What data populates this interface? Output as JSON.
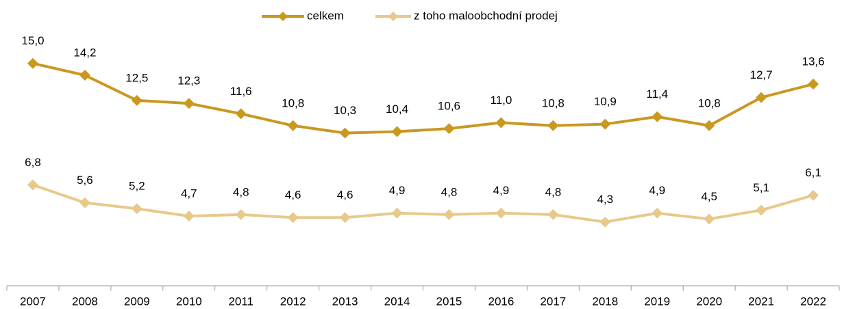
{
  "chart_data": {
    "type": "line",
    "categories": [
      "2007",
      "2008",
      "2009",
      "2010",
      "2011",
      "2012",
      "2013",
      "2014",
      "2015",
      "2016",
      "2017",
      "2018",
      "2019",
      "2020",
      "2021",
      "2022"
    ],
    "series": [
      {
        "name": "celkem",
        "color": "#c9981f",
        "values": [
          15.0,
          14.2,
          12.5,
          12.3,
          11.6,
          10.8,
          10.3,
          10.4,
          10.6,
          11.0,
          10.8,
          10.9,
          11.4,
          10.8,
          12.7,
          13.6
        ],
        "value_labels": [
          "15,0",
          "14,2",
          "12,5",
          "12,3",
          "11,6",
          "10,8",
          "10,3",
          "10,4",
          "10,6",
          "11,0",
          "10,8",
          "10,9",
          "11,4",
          "10,8",
          "12,7",
          "13,6"
        ]
      },
      {
        "name": "z toho maloobchodní prodej",
        "color": "#e8c98b",
        "values": [
          6.8,
          5.6,
          5.2,
          4.7,
          4.8,
          4.6,
          4.6,
          4.9,
          4.8,
          4.9,
          4.8,
          4.3,
          4.9,
          4.5,
          5.1,
          6.1
        ],
        "value_labels": [
          "6,8",
          "5,6",
          "5,2",
          "4,7",
          "4,8",
          "4,6",
          "4,6",
          "4,9",
          "4,8",
          "4,9",
          "4,8",
          "4,3",
          "4,9",
          "4,5",
          "5,1",
          "6,1"
        ]
      }
    ],
    "ylim": [
      0,
      16
    ],
    "legend": "top"
  }
}
